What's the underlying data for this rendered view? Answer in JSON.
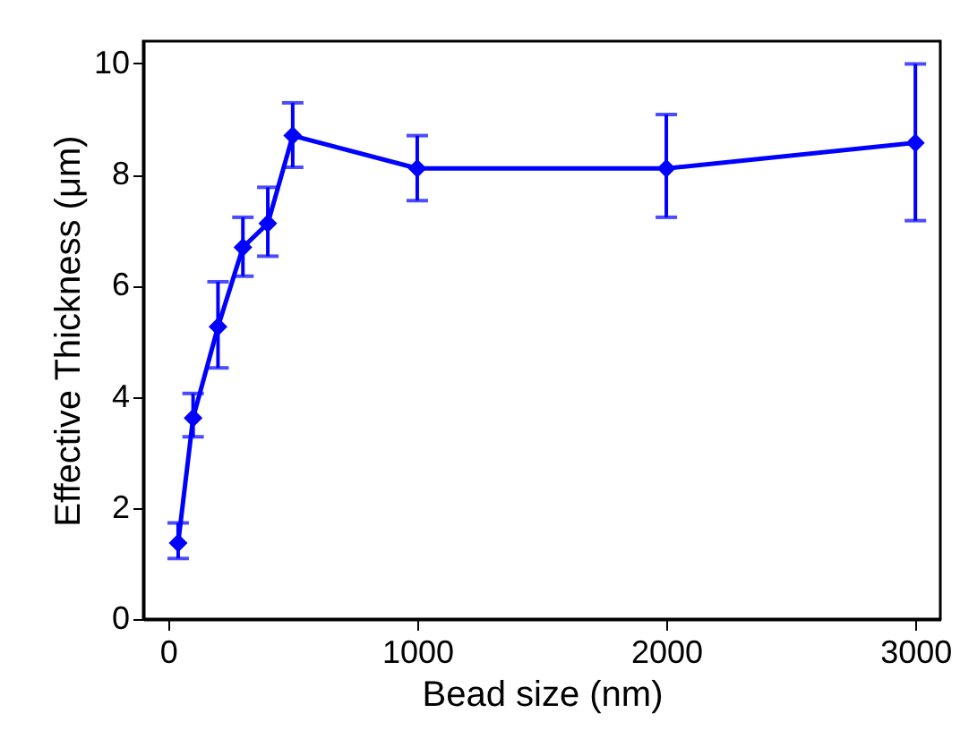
{
  "chart_data": {
    "type": "line",
    "xlabel": "Bead size (nm)",
    "ylabel": "Effective Thickness (μm)",
    "x": [
      40,
      100,
      200,
      300,
      400,
      500,
      1000,
      2000,
      3000
    ],
    "series": [
      {
        "color": "#0000ff",
        "values": [
          1.37,
          3.62,
          5.26,
          6.69,
          7.12,
          8.7,
          8.11,
          8.11,
          8.57
        ],
        "errors": [
          [
            1.09,
            1.73
          ],
          [
            3.28,
            4.06
          ],
          [
            4.52,
            6.07
          ],
          [
            6.17,
            7.23
          ],
          [
            6.53,
            7.77
          ],
          [
            8.13,
            9.29
          ],
          [
            7.53,
            8.7
          ],
          [
            7.23,
            9.08
          ],
          [
            7.17,
            9.99
          ]
        ]
      }
    ],
    "xlim": [
      -100,
      3100
    ],
    "xticks": [
      0,
      1000,
      2000,
      3000
    ],
    "ylim": [
      0,
      10.4
    ],
    "yticks": [
      0,
      2,
      4,
      6,
      8,
      10
    ],
    "marker": "diamond",
    "line_style": "solid",
    "grid": false
  }
}
